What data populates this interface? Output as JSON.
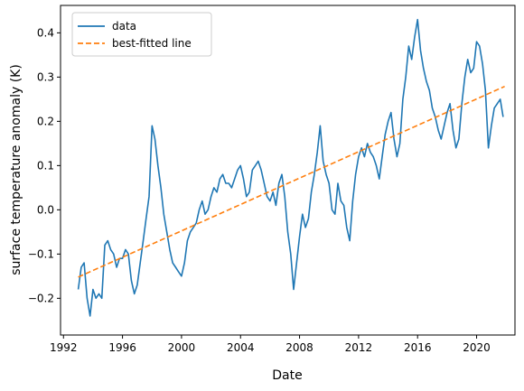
{
  "chart_data": {
    "type": "line",
    "xlabel": "Date",
    "ylabel": "surface temperature anomaly (K)",
    "xlim": [
      1991.8,
      2022.6
    ],
    "ylim": [
      -0.283,
      0.462
    ],
    "xticks": [
      {
        "value": 1992,
        "label": "1992"
      },
      {
        "value": 1996,
        "label": "1996"
      },
      {
        "value": 2000,
        "label": "2000"
      },
      {
        "value": 2004,
        "label": "2004"
      },
      {
        "value": 2008,
        "label": "2008"
      },
      {
        "value": 2012,
        "label": "2012"
      },
      {
        "value": 2016,
        "label": "2016"
      },
      {
        "value": 2020,
        "label": "2020"
      }
    ],
    "yticks": [
      {
        "value": -0.2,
        "label": "−0.2"
      },
      {
        "value": -0.1,
        "label": "−0.1"
      },
      {
        "value": 0.0,
        "label": "0.0"
      },
      {
        "value": 0.1,
        "label": "0.1"
      },
      {
        "value": 0.2,
        "label": "0.2"
      },
      {
        "value": 0.3,
        "label": "0.3"
      },
      {
        "value": 0.4,
        "label": "0.4"
      }
    ],
    "grid": false,
    "legend_position": "top-left",
    "series": [
      {
        "name": "data",
        "color": "#1f77b4",
        "style": "solid",
        "x": [
          1993.0,
          1993.2,
          1993.4,
          1993.6,
          1993.8,
          1994.0,
          1994.2,
          1994.4,
          1994.6,
          1994.8,
          1995.0,
          1995.2,
          1995.4,
          1995.6,
          1995.8,
          1996.0,
          1996.2,
          1996.4,
          1996.6,
          1996.8,
          1997.0,
          1997.2,
          1997.4,
          1997.6,
          1997.8,
          1998.0,
          1998.2,
          1998.4,
          1998.6,
          1998.8,
          1999.0,
          1999.2,
          1999.4,
          1999.6,
          1999.8,
          2000.0,
          2000.2,
          2000.4,
          2000.6,
          2000.8,
          2001.0,
          2001.2,
          2001.4,
          2001.6,
          2001.8,
          2002.0,
          2002.2,
          2002.4,
          2002.6,
          2002.8,
          2003.0,
          2003.2,
          2003.4,
          2003.6,
          2003.8,
          2004.0,
          2004.2,
          2004.4,
          2004.6,
          2004.8,
          2005.0,
          2005.2,
          2005.4,
          2005.6,
          2005.8,
          2006.0,
          2006.2,
          2006.4,
          2006.6,
          2006.8,
          2007.0,
          2007.2,
          2007.4,
          2007.6,
          2007.8,
          2008.0,
          2008.2,
          2008.4,
          2008.6,
          2008.8,
          2009.0,
          2009.2,
          2009.4,
          2009.6,
          2009.8,
          2010.0,
          2010.2,
          2010.4,
          2010.6,
          2010.8,
          2011.0,
          2011.2,
          2011.4,
          2011.6,
          2011.8,
          2012.0,
          2012.2,
          2012.4,
          2012.6,
          2012.8,
          2013.0,
          2013.2,
          2013.4,
          2013.6,
          2013.8,
          2014.0,
          2014.2,
          2014.4,
          2014.6,
          2014.8,
          2015.0,
          2015.2,
          2015.4,
          2015.6,
          2015.8,
          2016.0,
          2016.2,
          2016.4,
          2016.6,
          2016.8,
          2017.0,
          2017.2,
          2017.4,
          2017.6,
          2017.8,
          2018.0,
          2018.2,
          2018.4,
          2018.6,
          2018.8,
          2019.0,
          2019.2,
          2019.4,
          2019.6,
          2019.8,
          2020.0,
          2020.2,
          2020.4,
          2020.6,
          2020.8,
          2021.0,
          2021.2,
          2021.4,
          2021.6,
          2021.8
        ],
        "y": [
          -0.18,
          -0.13,
          -0.12,
          -0.2,
          -0.24,
          -0.18,
          -0.2,
          -0.19,
          -0.2,
          -0.08,
          -0.07,
          -0.09,
          -0.1,
          -0.13,
          -0.11,
          -0.11,
          -0.09,
          -0.1,
          -0.16,
          -0.19,
          -0.17,
          -0.12,
          -0.07,
          -0.02,
          0.03,
          0.19,
          0.16,
          0.1,
          0.05,
          -0.01,
          -0.05,
          -0.09,
          -0.12,
          -0.13,
          -0.14,
          -0.15,
          -0.12,
          -0.07,
          -0.05,
          -0.04,
          -0.03,
          0.0,
          0.02,
          -0.01,
          0.0,
          0.03,
          0.05,
          0.04,
          0.07,
          0.08,
          0.06,
          0.06,
          0.05,
          0.07,
          0.09,
          0.1,
          0.07,
          0.03,
          0.04,
          0.09,
          0.1,
          0.11,
          0.09,
          0.06,
          0.03,
          0.02,
          0.04,
          0.01,
          0.06,
          0.08,
          0.03,
          -0.05,
          -0.1,
          -0.18,
          -0.12,
          -0.06,
          -0.01,
          -0.04,
          -0.02,
          0.04,
          0.08,
          0.13,
          0.19,
          0.11,
          0.08,
          0.06,
          0.0,
          -0.01,
          0.06,
          0.02,
          0.01,
          -0.04,
          -0.07,
          0.02,
          0.08,
          0.12,
          0.14,
          0.12,
          0.15,
          0.13,
          0.12,
          0.1,
          0.07,
          0.12,
          0.17,
          0.2,
          0.22,
          0.16,
          0.12,
          0.15,
          0.25,
          0.3,
          0.37,
          0.34,
          0.39,
          0.43,
          0.36,
          0.32,
          0.29,
          0.27,
          0.23,
          0.21,
          0.18,
          0.16,
          0.19,
          0.22,
          0.24,
          0.18,
          0.14,
          0.16,
          0.24,
          0.3,
          0.34,
          0.31,
          0.32,
          0.38,
          0.37,
          0.33,
          0.27,
          0.14,
          0.19,
          0.23,
          0.24,
          0.25,
          0.21
        ]
      },
      {
        "name": "best-fitted line",
        "color": "#ff7f0e",
        "style": "dashed",
        "x": [
          1993.0,
          2021.9
        ],
        "y": [
          -0.152,
          0.279
        ]
      }
    ]
  }
}
